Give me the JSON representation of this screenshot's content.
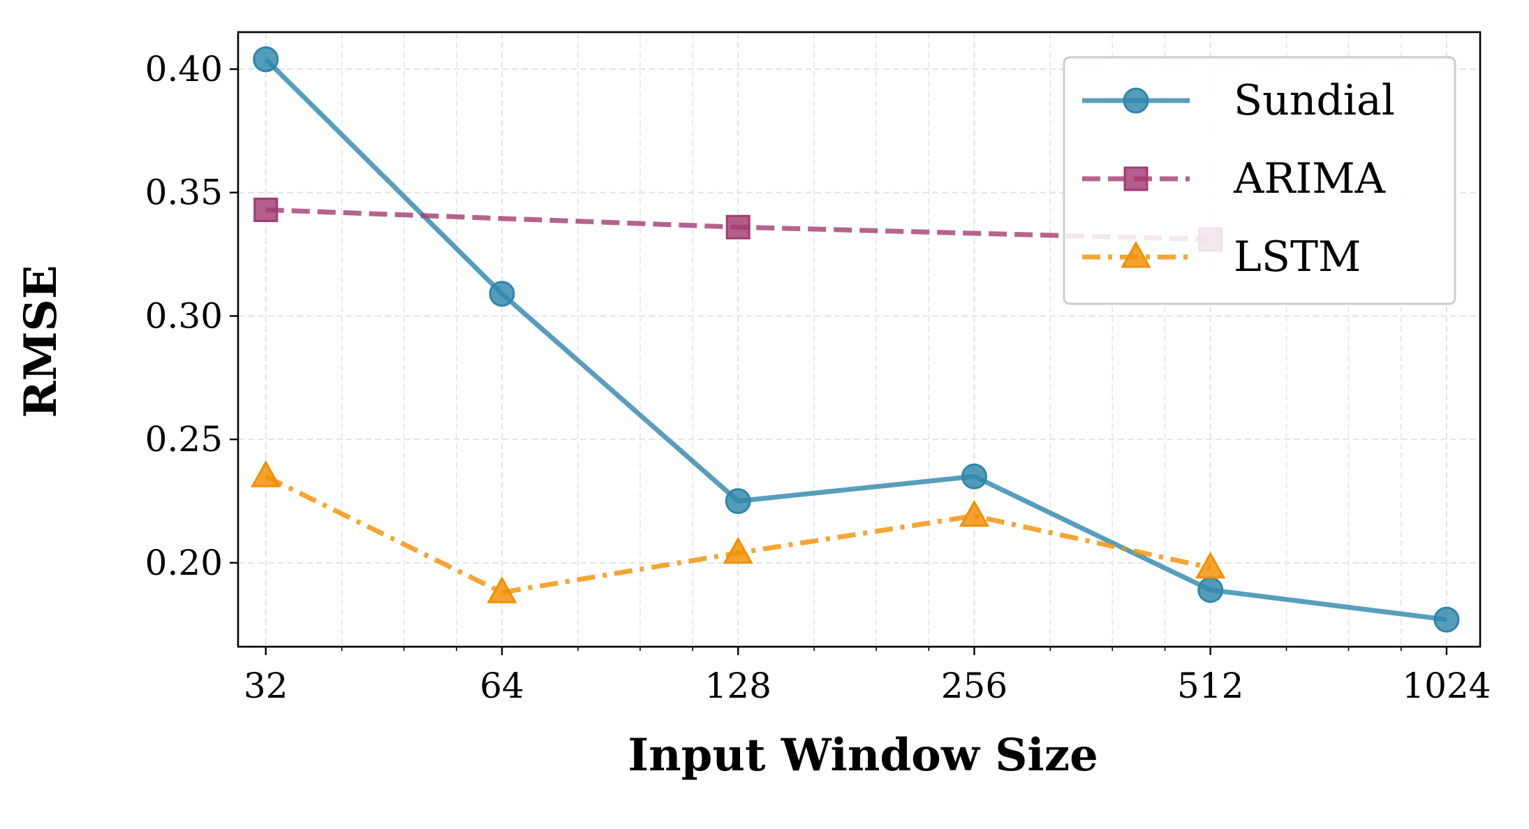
{
  "chart_data": {
    "type": "line",
    "x_scale": "log2",
    "xlabel": "Input Window Size",
    "ylabel": "RMSE",
    "x_ticks": [
      32,
      64,
      128,
      256,
      512,
      1024
    ],
    "x_tick_labels": [
      "32",
      "64",
      "128",
      "256",
      "512",
      "1024"
    ],
    "xlim": [
      29.5,
      1130
    ],
    "y_ticks": [
      0.2,
      0.25,
      0.3,
      0.35,
      0.4
    ],
    "y_tick_labels": [
      "0.20",
      "0.25",
      "0.30",
      "0.35",
      "0.40"
    ],
    "ylim": [
      0.166,
      0.415
    ],
    "grid": true,
    "legend_position": "upper right",
    "series": [
      {
        "name": "Sundial",
        "color": "#2e86ab",
        "marker": "circle",
        "line_style": "solid",
        "x": [
          32,
          64,
          128,
          256,
          512,
          1024
        ],
        "y": [
          0.404,
          0.309,
          0.225,
          0.235,
          0.189,
          0.177
        ]
      },
      {
        "name": "ARIMA",
        "color": "#a23b72",
        "marker": "square",
        "line_style": "dashed",
        "x": [
          32,
          128,
          512
        ],
        "y": [
          0.343,
          0.336,
          0.331
        ]
      },
      {
        "name": "LSTM",
        "color": "#f18f01",
        "marker": "triangle",
        "line_style": "dashdot",
        "x": [
          32,
          64,
          128,
          256,
          512
        ],
        "y": [
          0.235,
          0.188,
          0.204,
          0.219,
          0.198
        ]
      }
    ]
  }
}
